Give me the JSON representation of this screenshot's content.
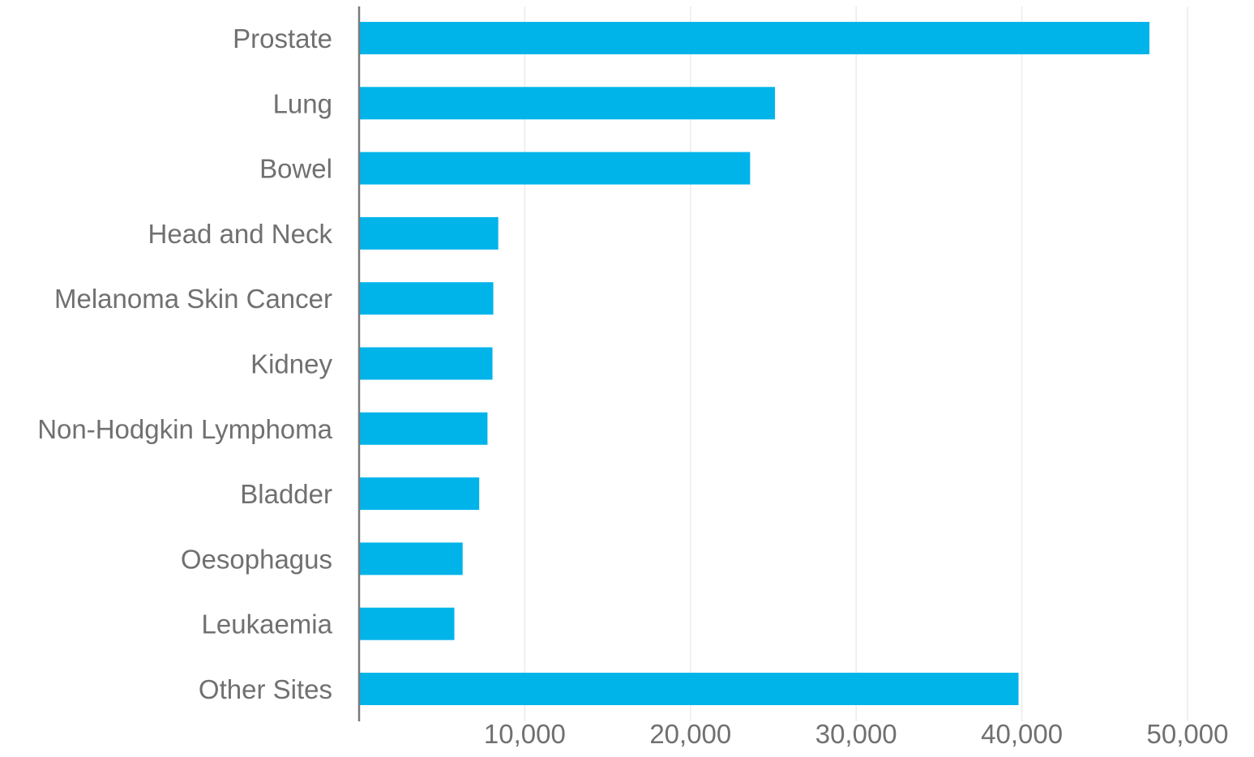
{
  "chart_data": {
    "type": "bar",
    "orientation": "horizontal",
    "categories": [
      "Prostate",
      "Lung",
      "Bowel",
      "Head and Neck",
      "Melanoma Skin Cancer",
      "Kidney",
      "Non-Hodgkin Lymphoma",
      "Bladder",
      "Oesophagus",
      "Leukaemia",
      "Other Sites"
    ],
    "values": [
      47700,
      25100,
      23600,
      8400,
      8100,
      8050,
      7750,
      7250,
      6250,
      5750,
      39800
    ],
    "title": "",
    "xlabel": "",
    "ylabel": "",
    "xlim": [
      0,
      50000
    ],
    "x_ticks": [
      10000,
      20000,
      30000,
      40000,
      50000
    ],
    "x_tick_labels": [
      "10,000",
      "20,000",
      "30,000",
      "40,000",
      "50,000"
    ],
    "grid": "vertical",
    "legend": "none",
    "colors": {
      "bar": "#00b4ea",
      "text": "#707070",
      "grid": "#ebebeb",
      "axis": "#7a7a7a"
    }
  }
}
